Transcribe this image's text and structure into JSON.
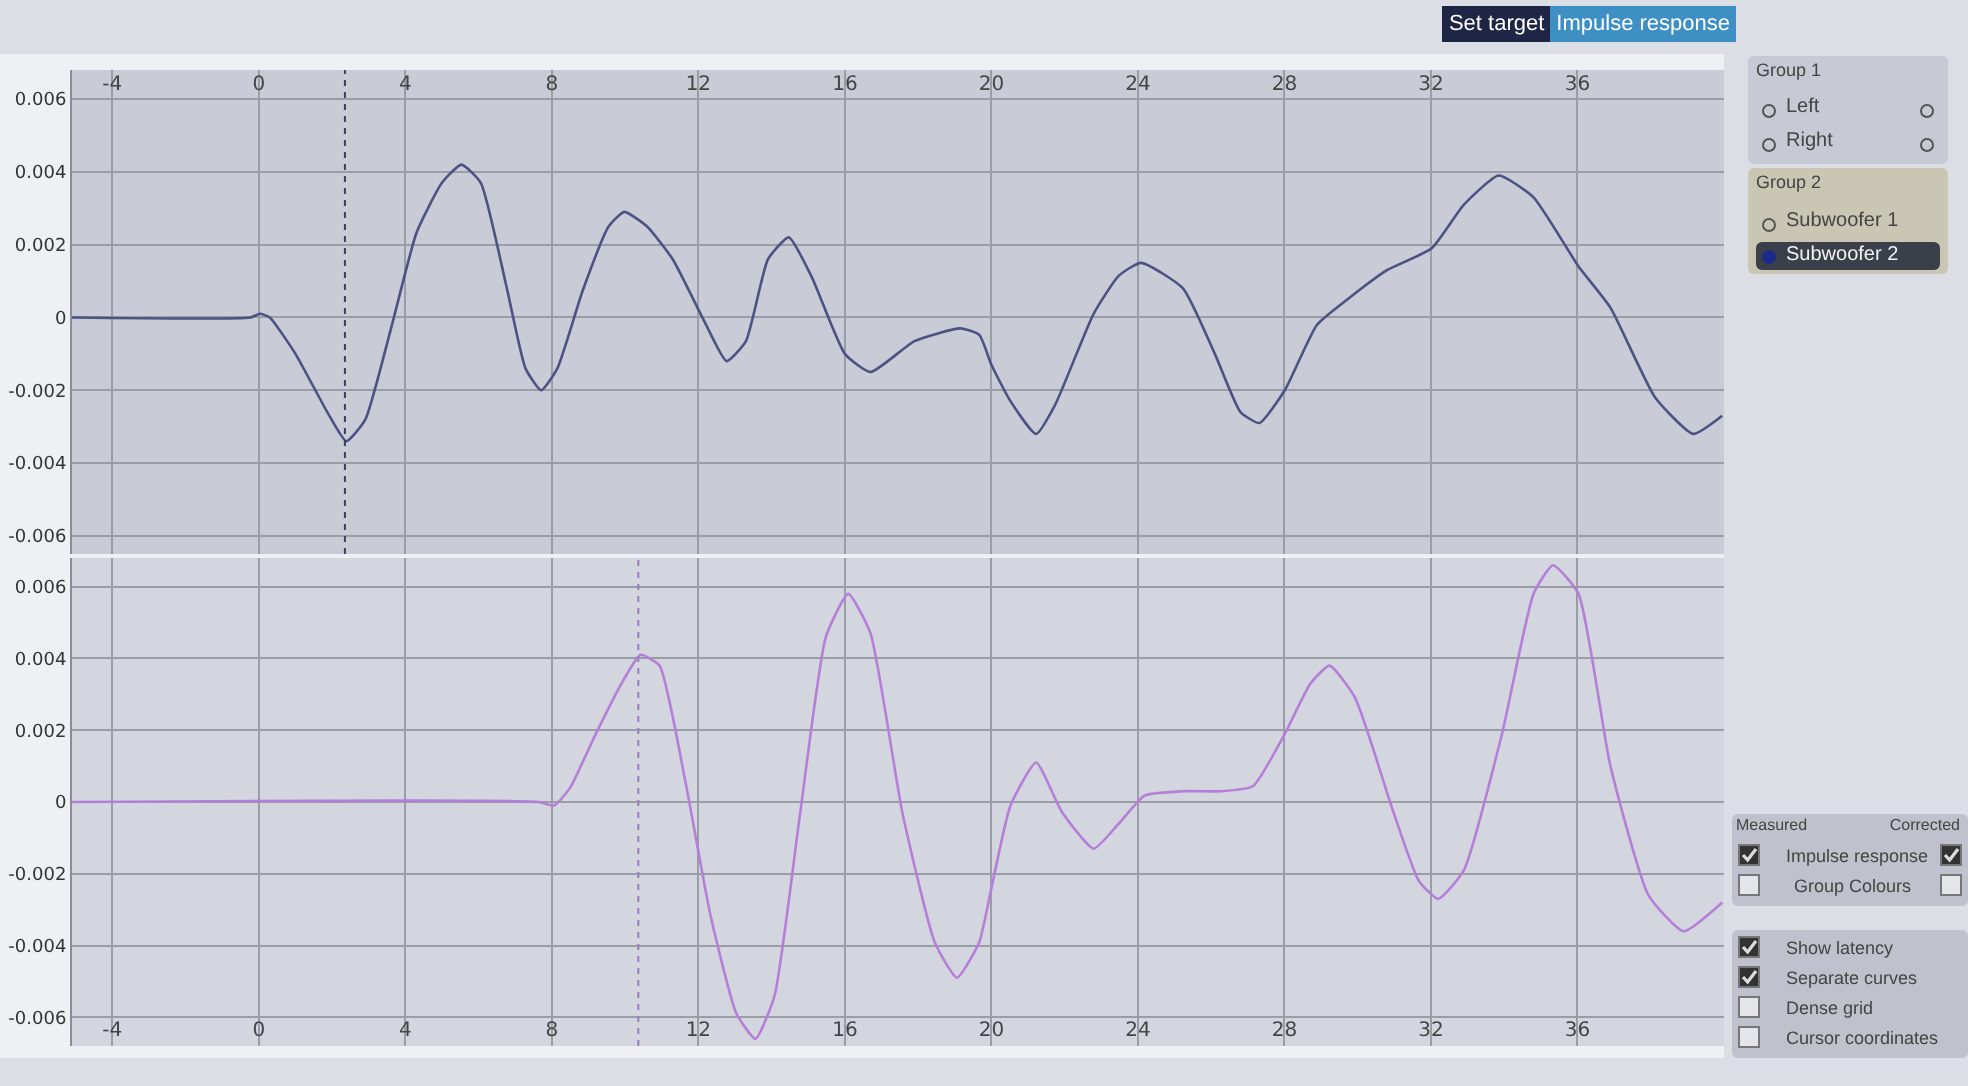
{
  "chart_data": [
    {
      "type": "line",
      "xlim": [
        -5.1,
        40
      ],
      "xticks": [
        -4,
        0,
        4,
        8,
        12,
        16,
        20,
        24,
        28,
        32,
        36
      ],
      "ylim": [
        -0.0065,
        0.0068
      ],
      "yticks": [
        -0.006,
        -0.004,
        -0.002,
        0,
        0.002,
        0.004,
        0.006
      ],
      "grid": true,
      "marker": "none",
      "line_style": "solid",
      "ref_lines": [
        {
          "axis": "x",
          "value": 2.35,
          "line_style": "dotted",
          "color": "#3a3f5c"
        }
      ],
      "series": [
        {
          "color": "#4c5282",
          "x": [
            -5.1,
            -0.23,
            0.03,
            0.3,
            1.0,
            1.87,
            2.39,
            2.91,
            3.61,
            4.31,
            5.0,
            5.53,
            6.06,
            6.75,
            7.28,
            7.71,
            8.15,
            8.85,
            9.55,
            9.98,
            10.6,
            11.3,
            12.16,
            12.77,
            13.3,
            13.9,
            14.47,
            15.1,
            16.0,
            16.7,
            17.9,
            19.15,
            19.67,
            20.0,
            20.52,
            21.22,
            21.74,
            22.79,
            23.48,
            24.09,
            25.23,
            26.1,
            26.8,
            27.32,
            28.01,
            28.89,
            29.76,
            30.8,
            32.02,
            32.9,
            33.85,
            34.8,
            36.03,
            36.9,
            38.12,
            39.16,
            39.95
          ],
          "values": [
            0,
            0,
            0.0001,
            0,
            -0.001,
            -0.0026,
            -0.0034,
            -0.0028,
            -0.0003,
            0.00234,
            0.0037,
            0.0042,
            0.0037,
            0.0009,
            -0.0014,
            -0.002,
            -0.0014,
            0.00076,
            0.0025,
            0.0029,
            0.0025,
            0.0016,
            -0.0001,
            -0.0012,
            -0.00065,
            0.0016,
            0.0022,
            0.0011,
            -0.001,
            -0.0015,
            -0.00065,
            -0.0003,
            -0.00048,
            -0.0013,
            -0.0023,
            -0.0032,
            -0.0024,
            0.0001,
            0.00115,
            0.0015,
            0.0008,
            -0.001,
            -0.0026,
            -0.0029,
            -0.002,
            -0.0002,
            0.00053,
            0.0013,
            0.0019,
            0.0031,
            0.0039,
            0.0033,
            0.0014,
            0.00027,
            -0.0022,
            -0.0032,
            -0.0027
          ]
        }
      ]
    },
    {
      "type": "line",
      "xlim": [
        -5.1,
        40
      ],
      "xticks": [
        -4,
        0,
        4,
        8,
        12,
        16,
        20,
        24,
        28,
        32,
        36
      ],
      "ylim": [
        -0.0068,
        0.0068
      ],
      "yticks": [
        -0.006,
        -0.004,
        -0.002,
        0,
        0.002,
        0.004,
        0.006
      ],
      "grid": true,
      "marker": "none",
      "line_style": "solid",
      "ref_lines": [
        {
          "axis": "x",
          "value": 10.36,
          "line_style": "dotted",
          "color": "#9a7cc4"
        }
      ],
      "series": [
        {
          "color": "#b47fd6",
          "x": [
            -5.1,
            7.63,
            8.06,
            8.5,
            9.2,
            9.9,
            10.42,
            10.94,
            11.64,
            12.34,
            13.04,
            13.56,
            14.08,
            14.78,
            15.48,
            16.09,
            16.7,
            17.57,
            18.45,
            19.06,
            19.67,
            20.0,
            20.52,
            21.22,
            21.92,
            22.79,
            23.48,
            24.18,
            25.23,
            26.27,
            27.14,
            28.01,
            28.71,
            29.23,
            29.93,
            30.98,
            31.67,
            32.2,
            32.9,
            33.94,
            34.8,
            35.33,
            36.03,
            36.9,
            37.94,
            38.9,
            39.95
          ],
          "values": [
            0,
            0,
            -0.0001,
            0.0004,
            0.0019,
            0.0033,
            0.0041,
            0.0038,
            0.0006,
            -0.0032,
            -0.0059,
            -0.0066,
            -0.0054,
            -0.0003,
            0.0046,
            0.0058,
            0.0047,
            -0.0003,
            -0.0039,
            -0.0049,
            -0.0039,
            -0.0024,
            -0.0001,
            0.0011,
            -0.00027,
            -0.0013,
            -0.0006,
            0.00018,
            0.0003,
            0.0003,
            0.00044,
            0.0019,
            0.0033,
            0.0038,
            0.0029,
            -0.0003,
            -0.0022,
            -0.0027,
            -0.0019,
            0.0019,
            0.0058,
            0.0066,
            0.0058,
            0.001,
            -0.0026,
            -0.0036,
            -0.0028
          ]
        }
      ]
    },
    {
      "type": "other",
      "annotations": [
        "Set target",
        "Impulse response",
        "Group 1",
        "Left",
        "Right",
        "Group 2",
        "Subwoofer 1",
        "Subwoofer 2",
        "Measured",
        "Corrected",
        "Impulse response",
        "Group Colours",
        "Show latency",
        "Separate curves",
        "Dense grid",
        "Cursor coordinates"
      ]
    }
  ]
}
